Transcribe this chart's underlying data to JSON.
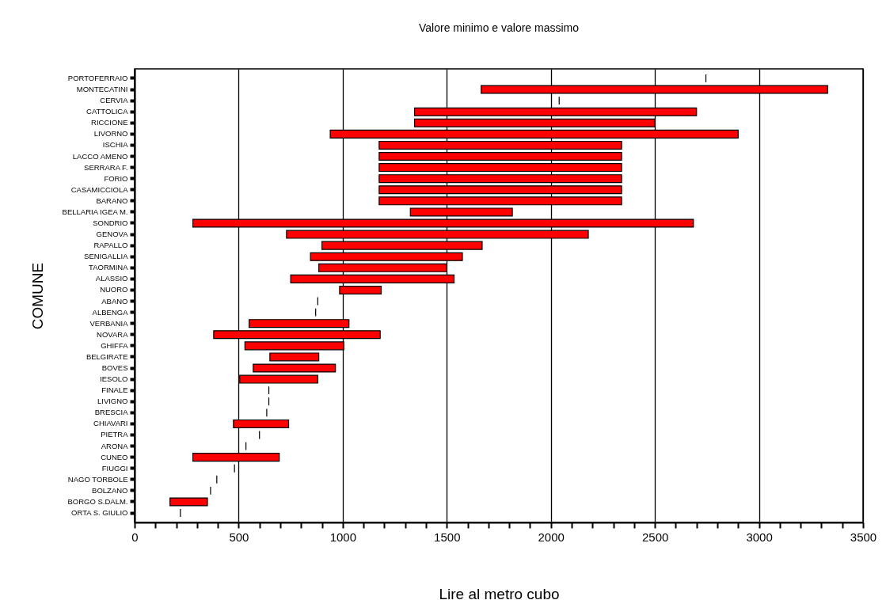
{
  "chart_data": {
    "type": "bar",
    "orientation": "horizontal",
    "title": "Valore minimo e valore massimo",
    "xlabel": "Lire al metro cubo",
    "ylabel": "COMUNE",
    "categories": [
      "PORTOFERRAIO",
      "MONTECATINI",
      "CERVIA",
      "CATTOLICA",
      "RICCIONE",
      "LIVORNO",
      "ISCHIA",
      "LACCO AMENO",
      "SERRARA F.",
      "FORIO",
      "CASAMICCIOLA",
      "BARANO",
      "BELLARIA IGEA M.",
      "SONDRIO",
      "GENOVA",
      "RAPALLO",
      "SENIGALLIA",
      "TAORMINA",
      "ALASSIO",
      "NUORO",
      "ABANO",
      "ALBENGA",
      "VERBANIA",
      "NOVARA",
      "GHIFFA",
      "BELGIRATE",
      "BOVES",
      "IESOLO",
      "FINALE",
      "LIVIGNO",
      "BRESCIA",
      "CHIAVARI",
      "PIETRA",
      "ARONA",
      "CUNEO",
      "FIUGGI",
      "NAGO TORBOLE",
      "BOLZANO",
      "BORGO S.DALM.",
      "ORTA S. GIULIO"
    ],
    "base": [
      2745,
      1665,
      2040,
      1345,
      1345,
      940,
      1175,
      1175,
      1175,
      1175,
      1175,
      1175,
      1325,
      280,
      730,
      900,
      845,
      885,
      750,
      985,
      880,
      870,
      550,
      380,
      530,
      650,
      570,
      505,
      645,
      645,
      635,
      475,
      600,
      535,
      280,
      480,
      395,
      365,
      170,
      220
    ],
    "values": [
      0,
      1665,
      0,
      1355,
      1155,
      1960,
      1165,
      1165,
      1165,
      1165,
      1165,
      1165,
      490,
      2405,
      1450,
      770,
      730,
      615,
      785,
      200,
      0,
      0,
      480,
      800,
      475,
      235,
      395,
      375,
      0,
      0,
      0,
      265,
      0,
      0,
      415,
      0,
      0,
      0,
      180,
      0
    ],
    "colors": [
      "#000000",
      "#ff0000",
      "#000000",
      "#ff0000",
      "#ff0000",
      "#ff0000",
      "#ff0000",
      "#ff0000",
      "#ff0000",
      "#ff0000",
      "#ff0000",
      "#ff0000",
      "#ff0000",
      "#ff0000",
      "#ff0000",
      "#ff0000",
      "#ff0000",
      "#ff0000",
      "#ff0000",
      "#ff0000",
      "#000000",
      "#000000",
      "#ff0000",
      "#ff0000",
      "#ff0000",
      "#ff0000",
      "#ff0000",
      "#ff0000",
      "#000000",
      "#000000",
      "#000000",
      "#ff0000",
      "#000000",
      "#000000",
      "#ff0000",
      "#000000",
      "#000000",
      "#000000",
      "#ff0000",
      "#000000"
    ],
    "xlim": [
      0,
      3500
    ],
    "xticks": [
      0,
      {
        "value": 100,
        "label": null
      },
      {
        "value": 200,
        "label": null
      },
      {
        "value": 300,
        "label": null
      },
      {
        "value": 400,
        "label": null
      },
      500,
      {
        "value": 600,
        "label": null
      },
      {
        "value": 700,
        "label": null
      },
      {
        "value": 800,
        "label": null
      },
      {
        "value": 900,
        "label": null
      },
      1000,
      {
        "value": 1100,
        "label": null
      },
      {
        "value": 1200,
        "label": null
      },
      {
        "value": 1300,
        "label": null
      },
      {
        "value": 1400,
        "label": null
      },
      1500,
      {
        "value": 1600,
        "label": null
      },
      {
        "value": 1700,
        "label": null
      },
      {
        "value": 1800,
        "label": null
      },
      {
        "value": 1900,
        "label": null
      },
      2000,
      {
        "value": 2100,
        "label": null
      },
      {
        "value": 2200,
        "label": null
      },
      {
        "value": 2300,
        "label": null
      },
      {
        "value": 2400,
        "label": null
      },
      2500,
      {
        "value": 2600,
        "label": null
      },
      {
        "value": 2700,
        "label": null
      },
      {
        "value": 2800,
        "label": null
      },
      {
        "value": 2900,
        "label": null
      },
      3000,
      {
        "value": 3100,
        "label": null
      },
      {
        "value": 3200,
        "label": null
      },
      {
        "value": 3300,
        "label": null
      },
      {
        "value": 3400,
        "label": null
      },
      3500
    ],
    "grid": "x"
  }
}
